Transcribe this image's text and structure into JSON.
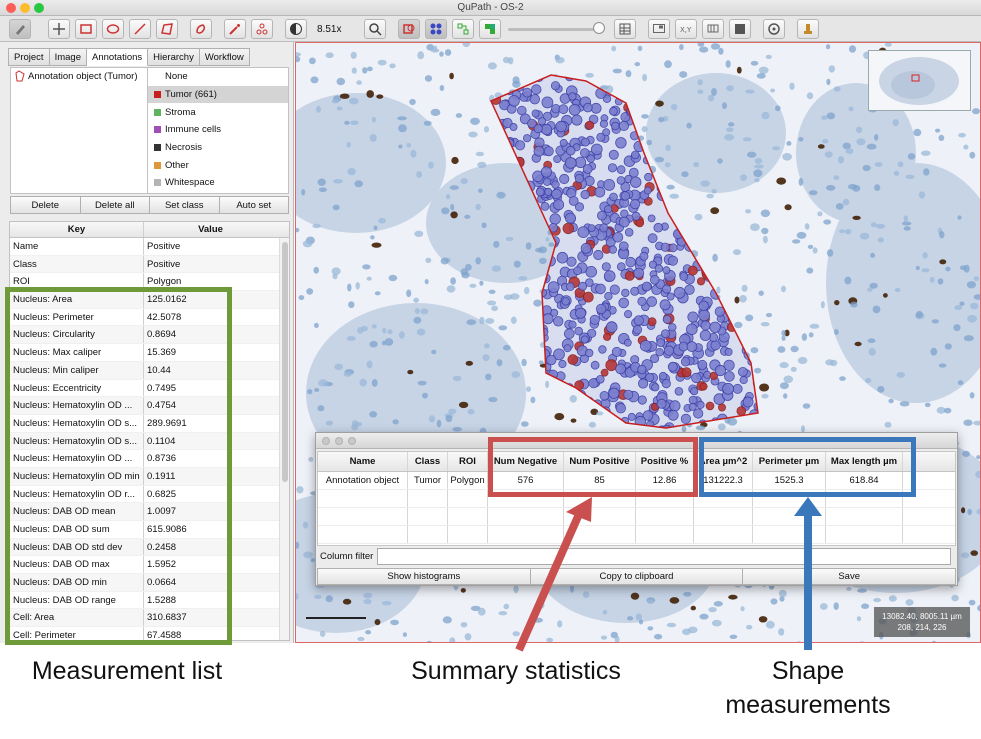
{
  "window": {
    "title": "QuPath - OS-2"
  },
  "toolbar": {
    "zoom": "8.51x",
    "tools": [
      "move-tool-icon",
      "pan-icon",
      "rectangle-icon",
      "ellipse-icon",
      "line-icon",
      "polygon-icon",
      "brush-icon",
      "wand-icon",
      "points-icon",
      "contrast-icon",
      "zoom-fit-icon",
      "annotations-icon",
      "detections-icon",
      "tma-icon",
      "fill-icon",
      "overview-icon",
      "coords-icon",
      "grid-icon",
      "table-icon",
      "settings-icon",
      "log-icon"
    ]
  },
  "left_panel": {
    "tabs": [
      "Project",
      "Image",
      "Annotations",
      "Hierarchy",
      "Workflow"
    ],
    "active_tab": "Annotations",
    "annotations": [
      "Annotation object (Tumor)"
    ],
    "classes": [
      {
        "label": "None",
        "color": ""
      },
      {
        "label": "Tumor (661)",
        "color": "#c81e1e"
      },
      {
        "label": "Stroma",
        "color": "#5fb35f"
      },
      {
        "label": "Immune cells",
        "color": "#a050b4"
      },
      {
        "label": "Necrosis",
        "color": "#333333"
      },
      {
        "label": "Other",
        "color": "#e2963c"
      },
      {
        "label": "Whitespace",
        "color": "#b4b4b4"
      }
    ],
    "buttons": {
      "delete": "Delete",
      "delete_all": "Delete all",
      "set_class": "Set class",
      "auto_set": "Auto set"
    },
    "measurement_table": {
      "headers": {
        "key": "Key",
        "value": "Value"
      },
      "rows": [
        [
          "Name",
          "Positive"
        ],
        [
          "Class",
          "Positive"
        ],
        [
          "ROI",
          "Polygon"
        ],
        [
          "Nucleus: Area",
          "125.0162"
        ],
        [
          "Nucleus: Perimeter",
          "42.5078"
        ],
        [
          "Nucleus: Circularity",
          "0.8694"
        ],
        [
          "Nucleus: Max caliper",
          "15.369"
        ],
        [
          "Nucleus: Min caliper",
          "10.44"
        ],
        [
          "Nucleus: Eccentricity",
          "0.7495"
        ],
        [
          "Nucleus: Hematoxylin OD ...",
          "0.4754"
        ],
        [
          "Nucleus: Hematoxylin OD s...",
          "289.9691"
        ],
        [
          "Nucleus: Hematoxylin OD s...",
          "0.1104"
        ],
        [
          "Nucleus: Hematoxylin OD ...",
          "0.8736"
        ],
        [
          "Nucleus: Hematoxylin OD min",
          "0.1911"
        ],
        [
          "Nucleus: Hematoxylin OD r...",
          "0.6825"
        ],
        [
          "Nucleus: DAB OD mean",
          "1.0097"
        ],
        [
          "Nucleus: DAB OD sum",
          "615.9086"
        ],
        [
          "Nucleus: DAB OD std dev",
          "0.2458"
        ],
        [
          "Nucleus: DAB OD max",
          "1.5952"
        ],
        [
          "Nucleus: DAB OD min",
          "0.0664"
        ],
        [
          "Nucleus: DAB OD range",
          "1.5288"
        ],
        [
          "Cell: Area",
          "310.6837"
        ],
        [
          "Cell: Perimeter",
          "67.4588"
        ]
      ]
    }
  },
  "viewer": {
    "coords": {
      "line1": "13082.40, 8005.11 µm",
      "line2": "208, 214, 226"
    }
  },
  "summary_window": {
    "headers": [
      "Name",
      "Class",
      "ROI",
      "Num Negative",
      "Num Positive",
      "Positive %",
      "Area µm^2",
      "Perimeter µm",
      "Max length µm"
    ],
    "row": [
      "Annotation object",
      "Tumor",
      "Polygon",
      "576",
      "85",
      "12.86",
      "131222.3",
      "1525.3",
      "618.84"
    ],
    "column_filter_label": "Column filter",
    "column_filter_value": "",
    "buttons": {
      "histograms": "Show histograms",
      "copy": "Copy to clipboard",
      "save": "Save"
    }
  },
  "callouts": {
    "measurement_list": "Measurement list",
    "summary_statistics": "Summary statistics",
    "shape_measurements_line1": "Shape",
    "shape_measurements_line2": "measurements",
    "colors": {
      "green": "#6f9a3a",
      "red": "#c9504f",
      "blue": "#3a78bb"
    }
  }
}
